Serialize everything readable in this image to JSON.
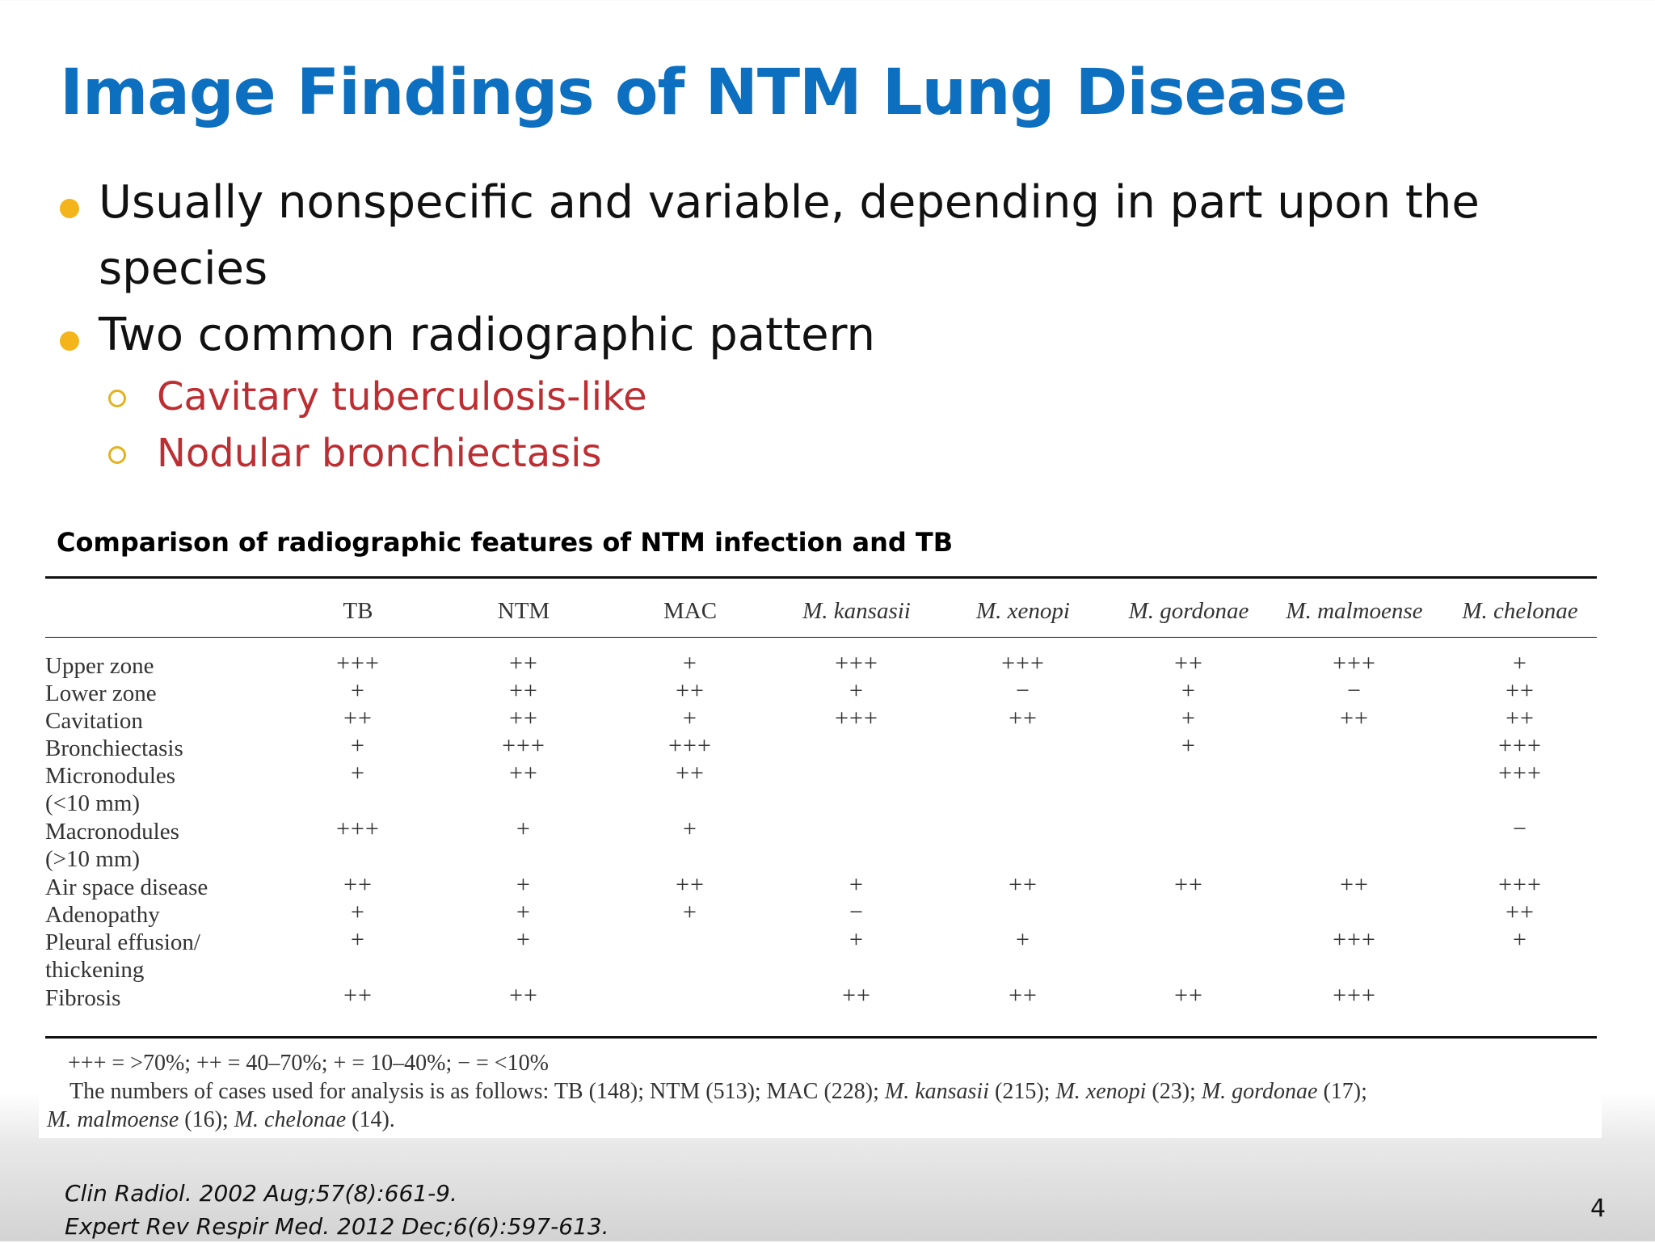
{
  "slide": {
    "title": "Image Findings of NTM Lung Disease",
    "bullets": [
      {
        "text": "Usually nonspecific and variable, depending in part upon the",
        "text2": "species"
      },
      {
        "text": "Two common radiographic pattern"
      }
    ],
    "sub_bullets": [
      "Cavitary tuberculosis-like",
      "Nodular bronchiectasis"
    ],
    "table_caption": "Comparison of radiographic features of NTM infection and TB",
    "references": [
      "Clin Radiol. 2002 Aug;57(8):661-9.",
      "Expert Rev Respir Med. 2012 Dec;6(6):597-613."
    ],
    "page_number": "4",
    "colors": {
      "title": "#0d6fbf",
      "bullet": "#f3b51b",
      "sub_bullet_text": "#bd2e33",
      "sub_bullet_marker": "#e3b21d"
    }
  },
  "table": {
    "columns": [
      "TB",
      "NTM",
      "MAC",
      "M. kansasii",
      "M. xenopi",
      "M. gordonae",
      "M. malmoense",
      "M. chelonae"
    ],
    "rows": [
      {
        "label": "Upper zone",
        "values": [
          "+++",
          "++",
          "+",
          "+++",
          "+++",
          "++",
          "+++",
          "+"
        ]
      },
      {
        "label": "Lower zone",
        "values": [
          "+",
          "++",
          "++",
          "+",
          "−",
          "+",
          "−",
          "++"
        ]
      },
      {
        "label": "Cavitation",
        "values": [
          "++",
          "++",
          "+",
          "+++",
          "++",
          "+",
          "++",
          "++"
        ]
      },
      {
        "label": "Bronchiectasis",
        "values": [
          "+",
          "+++",
          "+++",
          "",
          "",
          "+",
          "",
          "+++"
        ]
      },
      {
        "label": "Micronodules",
        "label2": "(<10 mm)",
        "values": [
          "+",
          "++",
          "++",
          "",
          "",
          "",
          "",
          "+++"
        ]
      },
      {
        "label": "Macronodules",
        "label2": "(>10 mm)",
        "values": [
          "+++",
          "+",
          "+",
          "",
          "",
          "",
          "",
          "−"
        ]
      },
      {
        "label": "Air space disease",
        "values": [
          "++",
          "+",
          "++",
          "+",
          "++",
          "++",
          "++",
          "+++"
        ]
      },
      {
        "label": "Adenopathy",
        "values": [
          "+",
          "+",
          "+",
          "−",
          "",
          "",
          "",
          "++"
        ]
      },
      {
        "label": "Pleural effusion/",
        "label2": "thickening",
        "values": [
          "+",
          "+",
          "",
          "+",
          "+",
          "",
          "+++",
          "+"
        ]
      },
      {
        "label": "Fibrosis",
        "values": [
          "++",
          "++",
          "",
          "++",
          "++",
          "++",
          "+++",
          ""
        ]
      }
    ],
    "legend": "+++ = >70%; ++ = 40–70%; + = 10–40%; − = <10%",
    "cases_note": {
      "p1": "The numbers of cases used for analysis is as follows: TB (148); NTM (513); MAC (228); ",
      "p2": "M. kansasii",
      "p3": " (215); ",
      "p4": "M. xenopi",
      "p5": " (23); ",
      "p6": "M. gordonae",
      "p7": " (17);",
      "p8": "M. malmoense",
      "p9": " (16); ",
      "p10": "M. chelonae",
      "p11": " (14)."
    }
  }
}
